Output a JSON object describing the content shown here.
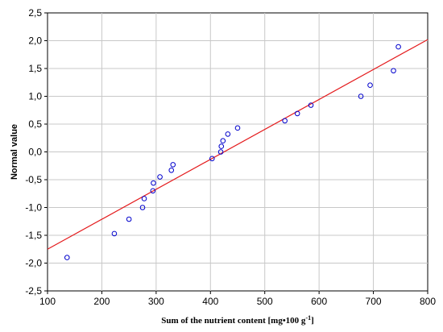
{
  "chart_data": {
    "type": "scatter",
    "xlabel": "Sum of the nutrient content [mg•100 g",
    "xlabel_sup": "-1",
    "xlabel_end": "]",
    "ylabel": "Normal value",
    "xlim": [
      100,
      800
    ],
    "ylim": [
      -2.5,
      2.5
    ],
    "x_ticks": [
      "100",
      "200",
      "300",
      "400",
      "500",
      "600",
      "700",
      "800"
    ],
    "y_ticks": [
      "-2,5",
      "-2,0",
      "-1,5",
      "-1,0",
      "-0,5",
      "0,0",
      "0,5",
      "1,0",
      "1,5",
      "2,0",
      "2,5"
    ],
    "grid": true,
    "marker_color": "#0000cc",
    "line_color": "#e41a1c",
    "points": [
      {
        "x": 136,
        "y": -1.9
      },
      {
        "x": 223,
        "y": -1.47
      },
      {
        "x": 250,
        "y": -1.21
      },
      {
        "x": 275,
        "y": -1.0
      },
      {
        "x": 278,
        "y": -0.84
      },
      {
        "x": 294,
        "y": -0.7
      },
      {
        "x": 295,
        "y": -0.56
      },
      {
        "x": 307,
        "y": -0.45
      },
      {
        "x": 328,
        "y": -0.33
      },
      {
        "x": 331,
        "y": -0.23
      },
      {
        "x": 403,
        "y": -0.12
      },
      {
        "x": 419,
        "y": 0.0
      },
      {
        "x": 420,
        "y": 0.1
      },
      {
        "x": 423,
        "y": 0.2
      },
      {
        "x": 432,
        "y": 0.32
      },
      {
        "x": 450,
        "y": 0.43
      },
      {
        "x": 537,
        "y": 0.56
      },
      {
        "x": 560,
        "y": 0.69
      },
      {
        "x": 585,
        "y": 0.84
      },
      {
        "x": 677,
        "y": 1.0
      },
      {
        "x": 694,
        "y": 1.2
      },
      {
        "x": 737,
        "y": 1.46
      },
      {
        "x": 746,
        "y": 1.89
      }
    ],
    "fit_line": {
      "x": [
        100,
        800
      ],
      "y": [
        -1.75,
        2.02
      ]
    }
  }
}
